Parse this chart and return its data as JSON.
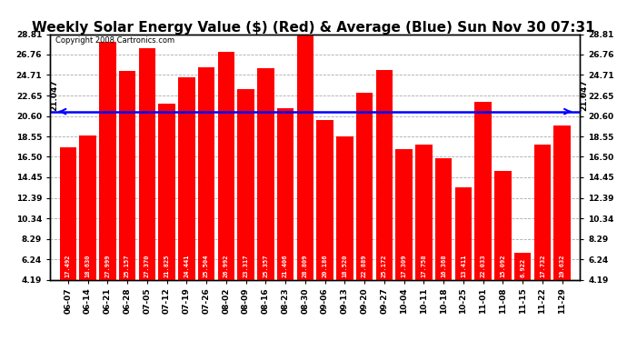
{
  "title": "Weekly Solar Energy Value ($) (Red) & Average (Blue) Sun Nov 30 07:31",
  "copyright": "Copyright 2008 Cartronics.com",
  "categories": [
    "06-07",
    "06-14",
    "06-21",
    "06-28",
    "07-05",
    "07-12",
    "07-19",
    "07-26",
    "08-02",
    "08-09",
    "08-16",
    "08-23",
    "08-30",
    "09-06",
    "09-13",
    "09-20",
    "09-27",
    "10-04",
    "10-11",
    "10-18",
    "10-25",
    "11-01",
    "11-08",
    "11-15",
    "11-22",
    "11-29"
  ],
  "values": [
    17.492,
    18.63,
    27.999,
    25.157,
    27.37,
    21.825,
    24.441,
    25.504,
    26.992,
    23.317,
    25.357,
    21.406,
    28.809,
    20.186,
    18.52,
    22.889,
    25.172,
    17.309,
    17.758,
    16.368,
    13.411,
    22.033,
    15.092,
    6.922,
    17.732,
    19.632
  ],
  "average": 21.047,
  "bar_color": "#ff0000",
  "avg_line_color": "#0000ff",
  "background_color": "#ffffff",
  "plot_bg_color": "#ffffff",
  "grid_color": "#aaaaaa",
  "yticks": [
    4.19,
    6.24,
    8.29,
    10.34,
    12.39,
    14.45,
    16.5,
    18.55,
    20.6,
    22.65,
    24.71,
    26.76,
    28.81
  ],
  "ymin": 4.19,
  "ymax": 28.81,
  "title_fontsize": 11,
  "copyright_fontsize": 6,
  "bar_label_fontsize": 5,
  "tick_fontsize": 6.5,
  "avg_label": "21.047",
  "avg_fontsize": 6.5
}
